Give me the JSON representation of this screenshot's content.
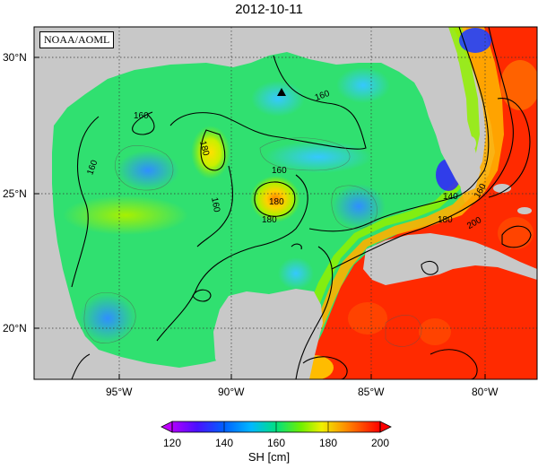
{
  "title": "2012-10-11",
  "credit": "NOAA/AOML",
  "lat_labels": [
    "30°N",
    "25°N",
    "20°N"
  ],
  "lon_labels": [
    "95°W",
    "90°W",
    "85°W",
    "80°W"
  ],
  "contour_labels": [
    "160",
    "160",
    "160",
    "160",
    "160",
    "180",
    "180",
    "180",
    "140",
    "180",
    "200",
    "160"
  ],
  "colorbar": {
    "label": "SH [cm]",
    "ticks": [
      "120",
      "140",
      "160",
      "180",
      "200"
    ],
    "colors": [
      "#c000ff",
      "#5000ff",
      "#0060ff",
      "#00c0ff",
      "#00e0a0",
      "#40e040",
      "#a0f000",
      "#f0f000",
      "#ffa000",
      "#ff4000",
      "#ff0000"
    ]
  },
  "marker": "triangle-station",
  "colors": {
    "land": "#c8c8c8",
    "gulf": "#30e070",
    "warm": "#ff2a00"
  }
}
